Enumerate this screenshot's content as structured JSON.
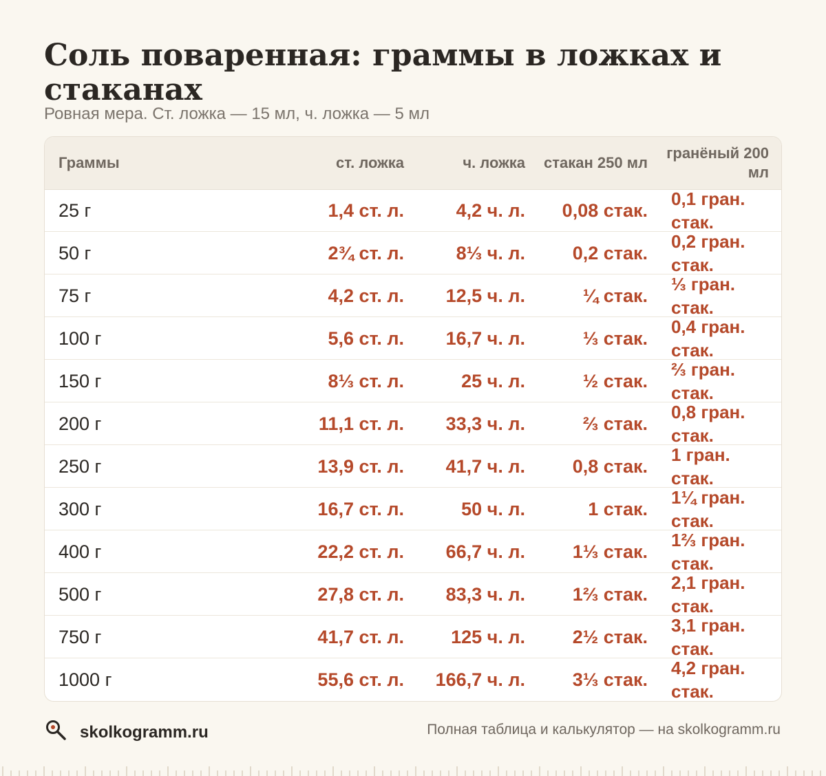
{
  "title": "Соль поваренная: граммы в ложках и стаканах",
  "subtitle": "Ровная мера. Ст. ложка — 15 мл, ч. ложка — 5 мл",
  "table": {
    "headers": [
      "Граммы",
      "ст. ложка",
      "ч. ложка",
      "стакан 250 мл",
      "гранёный 200 мл"
    ],
    "rows": [
      [
        "25 г",
        "1,4 ст. л.",
        "4,2 ч. л.",
        "0,08 стак.",
        "0,1 гран. стак."
      ],
      [
        "50 г",
        "2¾ ст. л.",
        "8⅓ ч. л.",
        "0,2 стак.",
        "0,2 гран. стак."
      ],
      [
        "75 г",
        "4,2 ст. л.",
        "12,5 ч. л.",
        "¼ стак.",
        "⅓ гран. стак."
      ],
      [
        "100 г",
        "5,6 ст. л.",
        "16,7 ч. л.",
        "⅓ стак.",
        "0,4 гран. стак."
      ],
      [
        "150 г",
        "8⅓ ст. л.",
        "25 ч. л.",
        "½ стак.",
        "⅔ гран. стак."
      ],
      [
        "200 г",
        "11,1 ст. л.",
        "33,3 ч. л.",
        "⅔ стак.",
        "0,8 гран. стак."
      ],
      [
        "250 г",
        "13,9 ст. л.",
        "41,7 ч. л.",
        "0,8 стак.",
        "1 гран. стак."
      ],
      [
        "300 г",
        "16,7 ст. л.",
        "50 ч. л.",
        "1 стак.",
        "1¼ гран. стак."
      ],
      [
        "400 г",
        "22,2 ст. л.",
        "66,7 ч. л.",
        "1⅓ стак.",
        "1⅔ гран. стак."
      ],
      [
        "500 г",
        "27,8 ст. л.",
        "83,3 ч. л.",
        "1⅔ стак.",
        "2,1 гран. стак."
      ],
      [
        "750 г",
        "41,7 ст. л.",
        "125 ч. л.",
        "2½ стак.",
        "3,1 гран. стак."
      ],
      [
        "1000 г",
        "55,6 ст. л.",
        "166,7 ч. л.",
        "3⅓ стак.",
        "4,2 гран. стак."
      ]
    ]
  },
  "footer": {
    "brand": "skolkogramm.ru",
    "brand_icon": "magnifier-icon",
    "note": "Полная таблица и калькулятор — на skolkogramm.ru"
  },
  "colors": {
    "background": "#faf7f0",
    "accent": "#b5492a",
    "header_bg": "#f3eee5",
    "text": "#2b2723",
    "muted": "#7a736b"
  }
}
